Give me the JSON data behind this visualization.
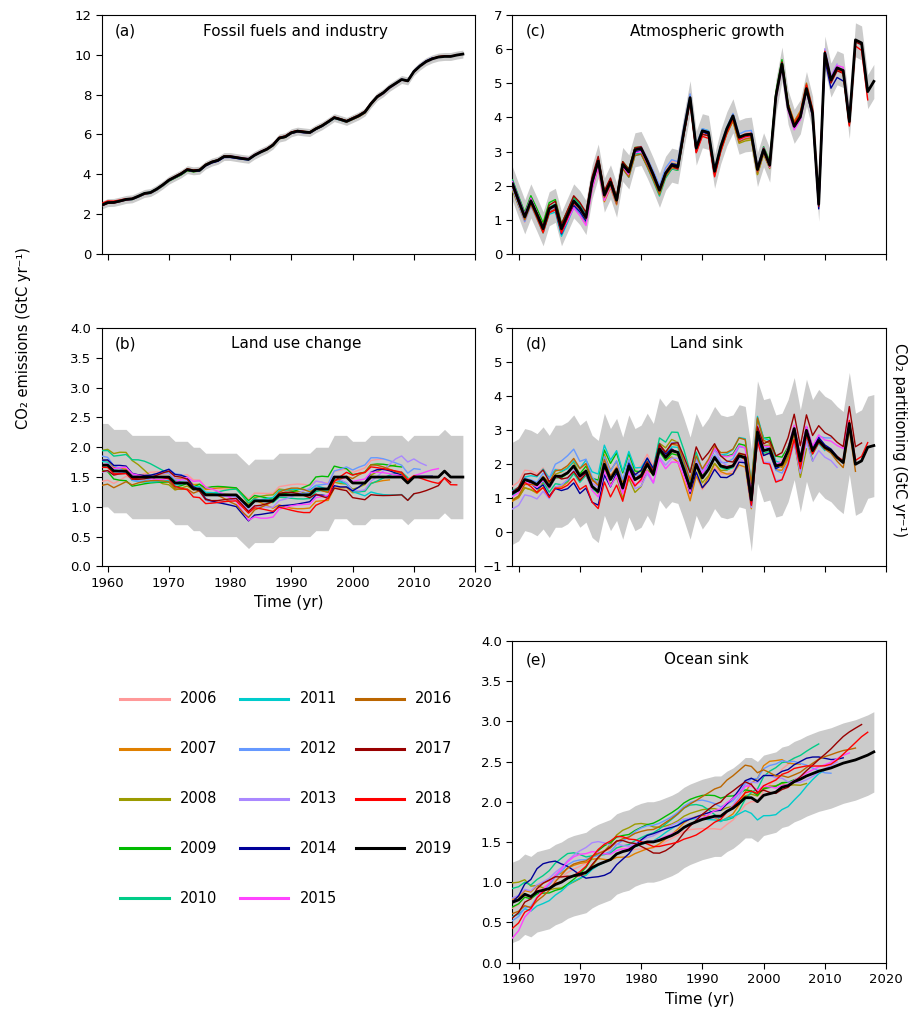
{
  "years_main": [
    1959,
    1960,
    1961,
    1962,
    1963,
    1964,
    1965,
    1966,
    1967,
    1968,
    1969,
    1970,
    1971,
    1972,
    1973,
    1974,
    1975,
    1976,
    1977,
    1978,
    1979,
    1980,
    1981,
    1982,
    1983,
    1984,
    1985,
    1986,
    1987,
    1988,
    1989,
    1990,
    1991,
    1992,
    1993,
    1994,
    1995,
    1996,
    1997,
    1998,
    1999,
    2000,
    2001,
    2002,
    2003,
    2004,
    2005,
    2006,
    2007,
    2008,
    2009,
    2010,
    2011,
    2012,
    2013,
    2014,
    2015,
    2016,
    2017,
    2018
  ],
  "eff_2019": [
    2.44,
    2.57,
    2.58,
    2.65,
    2.73,
    2.76,
    2.89,
    3.03,
    3.08,
    3.25,
    3.46,
    3.7,
    3.86,
    4.02,
    4.23,
    4.17,
    4.2,
    4.46,
    4.61,
    4.7,
    4.89,
    4.89,
    4.84,
    4.79,
    4.75,
    4.96,
    5.12,
    5.26,
    5.47,
    5.82,
    5.89,
    6.09,
    6.17,
    6.13,
    6.1,
    6.29,
    6.44,
    6.64,
    6.85,
    6.76,
    6.66,
    6.8,
    6.94,
    7.13,
    7.55,
    7.9,
    8.1,
    8.37,
    8.57,
    8.77,
    8.7,
    9.17,
    9.45,
    9.67,
    9.81,
    9.9,
    9.93,
    9.93,
    10.0,
    10.05
  ],
  "eff_upper": [
    2.63,
    2.77,
    2.78,
    2.85,
    2.93,
    2.96,
    3.09,
    3.23,
    3.28,
    3.45,
    3.66,
    3.9,
    4.06,
    4.22,
    4.43,
    4.37,
    4.4,
    4.66,
    4.81,
    4.9,
    5.09,
    5.09,
    5.04,
    4.99,
    4.95,
    5.16,
    5.32,
    5.46,
    5.67,
    6.02,
    6.09,
    6.29,
    6.37,
    6.33,
    6.3,
    6.49,
    6.64,
    6.84,
    7.05,
    6.96,
    6.86,
    7.0,
    7.14,
    7.33,
    7.75,
    8.1,
    8.3,
    8.57,
    8.77,
    8.97,
    8.9,
    9.37,
    9.65,
    9.87,
    10.01,
    10.1,
    10.13,
    10.13,
    10.2,
    10.25
  ],
  "eff_lower": [
    2.24,
    2.37,
    2.38,
    2.45,
    2.53,
    2.56,
    2.69,
    2.83,
    2.88,
    3.05,
    3.26,
    3.5,
    3.66,
    3.82,
    4.03,
    3.97,
    4.0,
    4.26,
    4.41,
    4.5,
    4.69,
    4.69,
    4.64,
    4.59,
    4.55,
    4.76,
    4.92,
    5.06,
    5.27,
    5.62,
    5.69,
    5.89,
    5.97,
    5.93,
    5.9,
    6.09,
    6.24,
    6.44,
    6.65,
    6.56,
    6.46,
    6.6,
    6.74,
    6.93,
    7.35,
    7.7,
    7.9,
    8.17,
    8.37,
    8.57,
    8.5,
    8.97,
    9.25,
    9.47,
    9.61,
    9.7,
    9.73,
    9.73,
    9.8,
    9.85
  ],
  "eluc_2019": [
    1.7,
    1.7,
    1.6,
    1.6,
    1.6,
    1.5,
    1.5,
    1.5,
    1.5,
    1.5,
    1.5,
    1.5,
    1.4,
    1.4,
    1.4,
    1.3,
    1.3,
    1.2,
    1.2,
    1.2,
    1.2,
    1.2,
    1.2,
    1.1,
    1.0,
    1.1,
    1.1,
    1.1,
    1.1,
    1.2,
    1.2,
    1.2,
    1.2,
    1.2,
    1.2,
    1.3,
    1.3,
    1.3,
    1.5,
    1.5,
    1.5,
    1.4,
    1.4,
    1.4,
    1.5,
    1.5,
    1.5,
    1.5,
    1.5,
    1.5,
    1.4,
    1.5,
    1.5,
    1.5,
    1.5,
    1.5,
    1.6,
    1.5,
    1.5,
    1.5
  ],
  "eluc_upper": [
    2.4,
    2.4,
    2.3,
    2.3,
    2.3,
    2.2,
    2.2,
    2.2,
    2.2,
    2.2,
    2.2,
    2.2,
    2.1,
    2.1,
    2.1,
    2.0,
    2.0,
    1.9,
    1.9,
    1.9,
    1.9,
    1.9,
    1.9,
    1.8,
    1.7,
    1.8,
    1.8,
    1.8,
    1.8,
    1.9,
    1.9,
    1.9,
    1.9,
    1.9,
    1.9,
    2.0,
    2.0,
    2.0,
    2.2,
    2.2,
    2.2,
    2.1,
    2.1,
    2.1,
    2.2,
    2.2,
    2.2,
    2.2,
    2.2,
    2.2,
    2.1,
    2.2,
    2.2,
    2.2,
    2.2,
    2.2,
    2.3,
    2.2,
    2.2,
    2.2
  ],
  "eluc_lower": [
    1.0,
    1.0,
    0.9,
    0.9,
    0.9,
    0.8,
    0.8,
    0.8,
    0.8,
    0.8,
    0.8,
    0.8,
    0.7,
    0.7,
    0.7,
    0.6,
    0.6,
    0.5,
    0.5,
    0.5,
    0.5,
    0.5,
    0.5,
    0.4,
    0.3,
    0.4,
    0.4,
    0.4,
    0.4,
    0.5,
    0.5,
    0.5,
    0.5,
    0.5,
    0.5,
    0.6,
    0.6,
    0.6,
    0.8,
    0.8,
    0.8,
    0.7,
    0.7,
    0.7,
    0.8,
    0.8,
    0.8,
    0.8,
    0.8,
    0.8,
    0.7,
    0.8,
    0.8,
    0.8,
    0.8,
    0.8,
    0.9,
    0.8,
    0.8,
    0.8
  ],
  "gatm_2019": [
    2.05,
    1.56,
    1.08,
    1.55,
    1.15,
    0.73,
    1.32,
    1.42,
    0.73,
    1.14,
    1.55,
    1.35,
    1.06,
    2.11,
    2.72,
    1.72,
    2.11,
    1.57,
    2.62,
    2.4,
    3.05,
    3.09,
    2.72,
    2.31,
    1.86,
    2.36,
    2.6,
    2.55,
    3.61,
    4.58,
    3.1,
    3.61,
    3.56,
    2.42,
    3.14,
    3.67,
    4.05,
    3.42,
    3.49,
    3.51,
    2.47,
    3.05,
    2.6,
    4.61,
    5.57,
    4.3,
    3.74,
    4.02,
    4.85,
    4.12,
    1.45,
    5.89,
    5.1,
    5.46,
    5.38,
    3.88,
    6.28,
    6.19,
    4.76,
    5.06
  ],
  "gatm_upper": [
    2.55,
    2.06,
    1.58,
    2.05,
    1.65,
    1.23,
    1.82,
    1.92,
    1.23,
    1.64,
    2.05,
    1.85,
    1.56,
    2.61,
    3.22,
    2.22,
    2.61,
    2.07,
    3.12,
    2.9,
    3.55,
    3.59,
    3.22,
    2.81,
    2.36,
    2.86,
    3.1,
    3.05,
    4.11,
    5.08,
    3.6,
    4.11,
    4.06,
    2.92,
    3.64,
    4.17,
    4.55,
    3.92,
    3.99,
    4.01,
    2.97,
    3.55,
    3.1,
    5.11,
    6.07,
    4.8,
    4.24,
    4.52,
    5.35,
    4.62,
    1.95,
    6.39,
    5.6,
    5.96,
    5.88,
    4.38,
    6.78,
    6.69,
    5.26,
    5.56
  ],
  "gatm_lower": [
    1.55,
    1.06,
    0.58,
    1.05,
    0.65,
    0.23,
    0.82,
    0.92,
    0.23,
    0.64,
    1.05,
    0.85,
    0.56,
    1.61,
    2.22,
    1.22,
    1.61,
    1.07,
    2.12,
    1.9,
    2.55,
    2.59,
    2.22,
    1.81,
    1.36,
    1.86,
    2.1,
    2.05,
    3.11,
    4.08,
    2.6,
    3.11,
    3.06,
    1.92,
    2.64,
    3.17,
    3.55,
    2.92,
    2.99,
    3.01,
    1.97,
    2.55,
    2.1,
    4.11,
    5.07,
    3.8,
    3.24,
    3.52,
    4.35,
    3.62,
    0.95,
    5.39,
    4.6,
    4.96,
    4.88,
    3.38,
    5.78,
    5.69,
    4.26,
    4.56
  ],
  "sland_2019": [
    1.15,
    1.25,
    1.55,
    1.5,
    1.4,
    1.6,
    1.35,
    1.65,
    1.65,
    1.75,
    1.95,
    1.65,
    1.8,
    1.35,
    1.2,
    2.0,
    1.55,
    1.85,
    1.3,
    1.95,
    1.55,
    1.65,
    2.0,
    1.7,
    2.45,
    2.2,
    2.4,
    2.35,
    1.85,
    1.3,
    2.0,
    1.6,
    1.85,
    2.2,
    1.95,
    1.9,
    1.95,
    2.25,
    2.2,
    0.95,
    2.95,
    2.4,
    2.45,
    1.95,
    2.0,
    2.4,
    3.05,
    2.1,
    3.0,
    2.4,
    2.7,
    2.5,
    2.4,
    2.2,
    2.05,
    3.2,
    2.0,
    2.1,
    2.5,
    2.55
  ],
  "sland_upper": [
    2.65,
    2.75,
    3.05,
    3.0,
    2.9,
    3.1,
    2.85,
    3.15,
    3.15,
    3.25,
    3.45,
    3.15,
    3.3,
    2.85,
    2.7,
    3.5,
    3.05,
    3.35,
    2.8,
    3.45,
    3.05,
    3.15,
    3.5,
    3.2,
    3.95,
    3.7,
    3.9,
    3.85,
    3.35,
    2.8,
    3.5,
    3.1,
    3.35,
    3.7,
    3.45,
    3.4,
    3.45,
    3.75,
    3.7,
    2.45,
    4.45,
    3.9,
    3.95,
    3.45,
    3.5,
    3.9,
    4.55,
    3.6,
    4.5,
    3.9,
    4.2,
    4.0,
    3.9,
    3.7,
    3.55,
    4.7,
    3.5,
    3.6,
    4.0,
    4.05
  ],
  "sland_lower": [
    -0.35,
    -0.25,
    0.05,
    0.0,
    -0.1,
    0.1,
    -0.15,
    0.15,
    0.15,
    0.25,
    0.45,
    0.15,
    0.3,
    -0.15,
    -0.3,
    0.5,
    0.05,
    0.35,
    -0.2,
    0.45,
    0.05,
    0.15,
    0.5,
    0.2,
    0.95,
    0.7,
    0.9,
    0.85,
    0.35,
    -0.2,
    0.5,
    0.1,
    0.35,
    0.7,
    0.45,
    0.4,
    0.45,
    0.75,
    0.7,
    -0.55,
    1.45,
    0.9,
    0.95,
    0.45,
    0.5,
    0.9,
    1.55,
    0.6,
    1.5,
    0.9,
    1.2,
    1.0,
    0.9,
    0.7,
    0.55,
    1.7,
    0.5,
    0.6,
    1.0,
    1.05
  ],
  "socean_2019": [
    0.75,
    0.78,
    0.85,
    0.82,
    0.88,
    0.9,
    0.92,
    0.97,
    1.0,
    1.05,
    1.08,
    1.1,
    1.12,
    1.18,
    1.22,
    1.25,
    1.28,
    1.35,
    1.38,
    1.4,
    1.45,
    1.48,
    1.5,
    1.5,
    1.52,
    1.55,
    1.58,
    1.62,
    1.68,
    1.72,
    1.75,
    1.78,
    1.8,
    1.82,
    1.82,
    1.88,
    1.92,
    1.98,
    2.05,
    2.05,
    2.0,
    2.08,
    2.1,
    2.12,
    2.18,
    2.2,
    2.25,
    2.28,
    2.32,
    2.35,
    2.38,
    2.4,
    2.42,
    2.45,
    2.48,
    2.5,
    2.52,
    2.55,
    2.58,
    2.62
  ],
  "socean_upper": [
    1.25,
    1.28,
    1.35,
    1.32,
    1.38,
    1.4,
    1.42,
    1.47,
    1.5,
    1.55,
    1.58,
    1.6,
    1.62,
    1.68,
    1.72,
    1.75,
    1.78,
    1.85,
    1.88,
    1.9,
    1.95,
    1.98,
    2.0,
    2.0,
    2.02,
    2.05,
    2.08,
    2.12,
    2.18,
    2.22,
    2.25,
    2.28,
    2.3,
    2.32,
    2.32,
    2.38,
    2.42,
    2.48,
    2.55,
    2.55,
    2.5,
    2.58,
    2.6,
    2.62,
    2.68,
    2.7,
    2.75,
    2.78,
    2.82,
    2.85,
    2.88,
    2.9,
    2.92,
    2.95,
    2.98,
    3.0,
    3.02,
    3.05,
    3.08,
    3.12
  ],
  "socean_lower": [
    0.25,
    0.28,
    0.35,
    0.32,
    0.38,
    0.4,
    0.42,
    0.47,
    0.5,
    0.55,
    0.58,
    0.6,
    0.62,
    0.68,
    0.72,
    0.75,
    0.78,
    0.85,
    0.88,
    0.9,
    0.95,
    0.98,
    1.0,
    1.0,
    1.02,
    1.05,
    1.08,
    1.12,
    1.18,
    1.22,
    1.25,
    1.28,
    1.3,
    1.32,
    1.32,
    1.38,
    1.42,
    1.48,
    1.55,
    1.55,
    1.5,
    1.58,
    1.6,
    1.62,
    1.68,
    1.7,
    1.75,
    1.78,
    1.82,
    1.85,
    1.88,
    1.9,
    1.92,
    1.95,
    1.98,
    2.0,
    2.02,
    2.05,
    2.08,
    2.12
  ],
  "legend_years": [
    "2006",
    "2007",
    "2008",
    "2009",
    "2010",
    "2011",
    "2012",
    "2013",
    "2014",
    "2015",
    "2016",
    "2017",
    "2018",
    "2019"
  ],
  "legend_colors": [
    "#FF9999",
    "#E08000",
    "#9B9B00",
    "#00BB00",
    "#00CC88",
    "#00CCCC",
    "#6699FF",
    "#AA88FF",
    "#000099",
    "#FF44FF",
    "#BB6600",
    "#990000",
    "#FF0000",
    "#000000"
  ],
  "panel_labels": [
    "(a)",
    "(b)",
    "(c)",
    "(d)",
    "(e)"
  ],
  "panel_titles": [
    "Fossil fuels and industry",
    "Land use change",
    "Atmospheric growth",
    "Land sink",
    "Ocean sink"
  ],
  "ylabel_emissions": "CO₂ emissions (GtC yr⁻¹)",
  "ylabel_partitioning": "CO₂ partitioning (GtC yr⁻¹)",
  "xlabel": "Time (yr)",
  "xlim": [
    1959,
    2019
  ],
  "ylim_a": [
    0,
    12
  ],
  "ylim_b": [
    0,
    4
  ],
  "ylim_c": [
    0,
    7
  ],
  "ylim_d": [
    -1,
    6
  ],
  "ylim_e": [
    0,
    4
  ],
  "gray_color": "#BEBEBE",
  "gray_alpha": 0.8
}
